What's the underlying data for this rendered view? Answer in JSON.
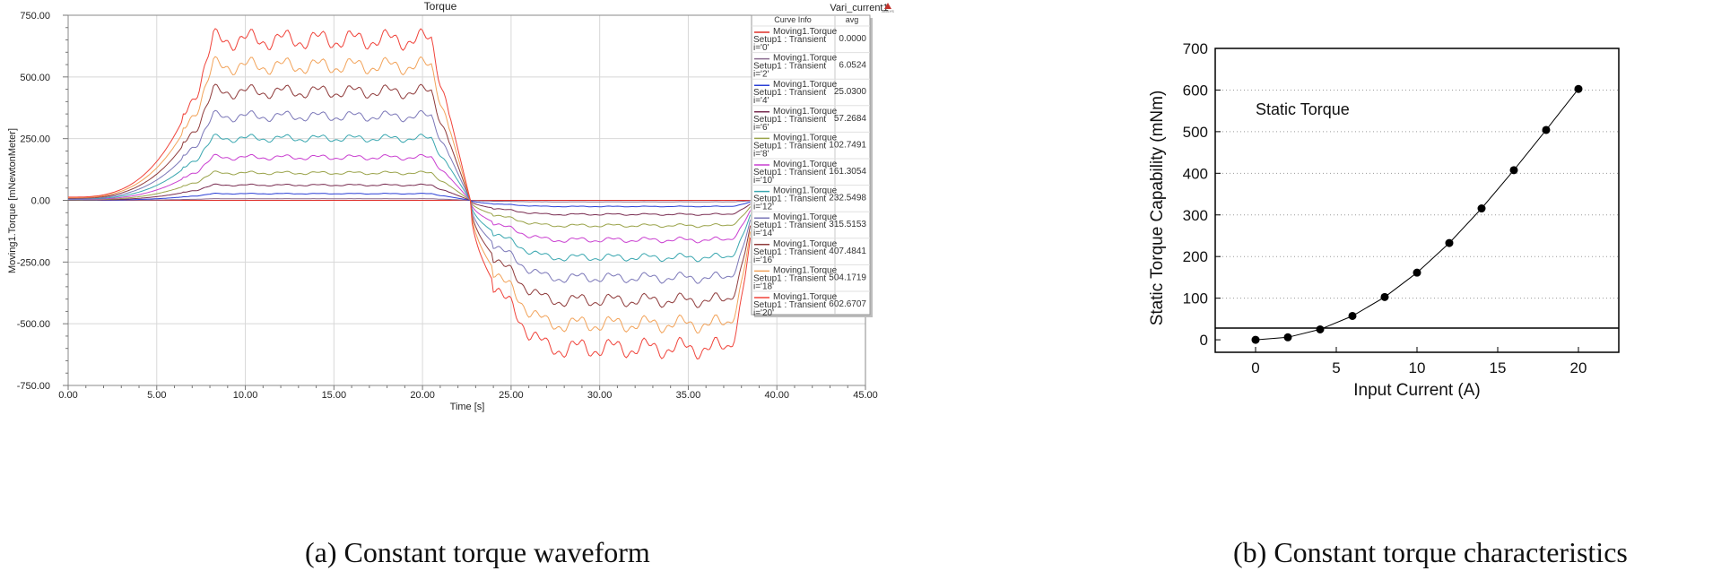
{
  "chart_data": [
    {
      "type": "line",
      "title": "Torque",
      "report_name": "Vari_current1",
      "xlabel": "Time [s]",
      "ylabel": "Moving1.Torque [mNewtonMeter]",
      "xlim": [
        0,
        45
      ],
      "ylim": [
        -750,
        750
      ],
      "xticks": [
        "0.00",
        "5.00",
        "10.00",
        "15.00",
        "20.00",
        "25.00",
        "30.00",
        "35.00",
        "40.00",
        "45.00"
      ],
      "yticks": [
        "750.00",
        "500.00",
        "250.00",
        "0.00",
        "-250.00",
        "-500.00",
        "-750.00"
      ],
      "grid": true,
      "legend_position": "top-right",
      "legend_header": [
        "Curve Info",
        "avg"
      ],
      "legend_line1": "Moving1.Torque",
      "legend_line2": "Setup1 : Transient",
      "series": [
        {
          "name": "i='0'",
          "avg": "0.0000",
          "color": "#e0302a"
        },
        {
          "name": "i='2'",
          "avg": "6.0524",
          "color": "#8b6d8f"
        },
        {
          "name": "i='4'",
          "avg": "25.0300",
          "color": "#2a3fd6"
        },
        {
          "name": "i='6'",
          "avg": "57.2684",
          "color": "#7a2e52"
        },
        {
          "name": "i='8'",
          "avg": "102.7491",
          "color": "#9aa34a"
        },
        {
          "name": "i='10'",
          "avg": "161.3054",
          "color": "#c93fd0"
        },
        {
          "name": "i='12'",
          "avg": "232.5498",
          "color": "#3aa7b0"
        },
        {
          "name": "i='14'",
          "avg": "315.5153",
          "color": "#7b77b8"
        },
        {
          "name": "i='16'",
          "avg": "407.4841",
          "color": "#8f3b3b"
        },
        {
          "name": "i='18'",
          "avg": "504.1719",
          "color": "#f2a35a"
        },
        {
          "name": "i='20'",
          "avg": "602.6707",
          "color": "#f0433a"
        }
      ]
    },
    {
      "type": "scatter",
      "xlabel": "Input Current (A)",
      "ylabel": "Static Torque Capability (mNm)",
      "annotation": "Static Torque",
      "xlim": [
        -2.5,
        22.5
      ],
      "ylim": [
        -30,
        700
      ],
      "xticks": [
        "0",
        "5",
        "10",
        "15",
        "20"
      ],
      "yticks": [
        "0",
        "100",
        "200",
        "300",
        "400",
        "500",
        "600",
        "700"
      ],
      "grid": "horizontal dotted",
      "x": [
        0,
        2,
        4,
        6,
        8,
        10,
        12,
        14,
        16,
        18,
        20
      ],
      "y": [
        0,
        6.05,
        25.03,
        57.27,
        102.75,
        161.31,
        232.55,
        315.52,
        407.48,
        504.17,
        602.67
      ]
    }
  ],
  "captions": {
    "a": "(a) Constant torque waveform",
    "b": "(b) Constant torque characteristics"
  }
}
